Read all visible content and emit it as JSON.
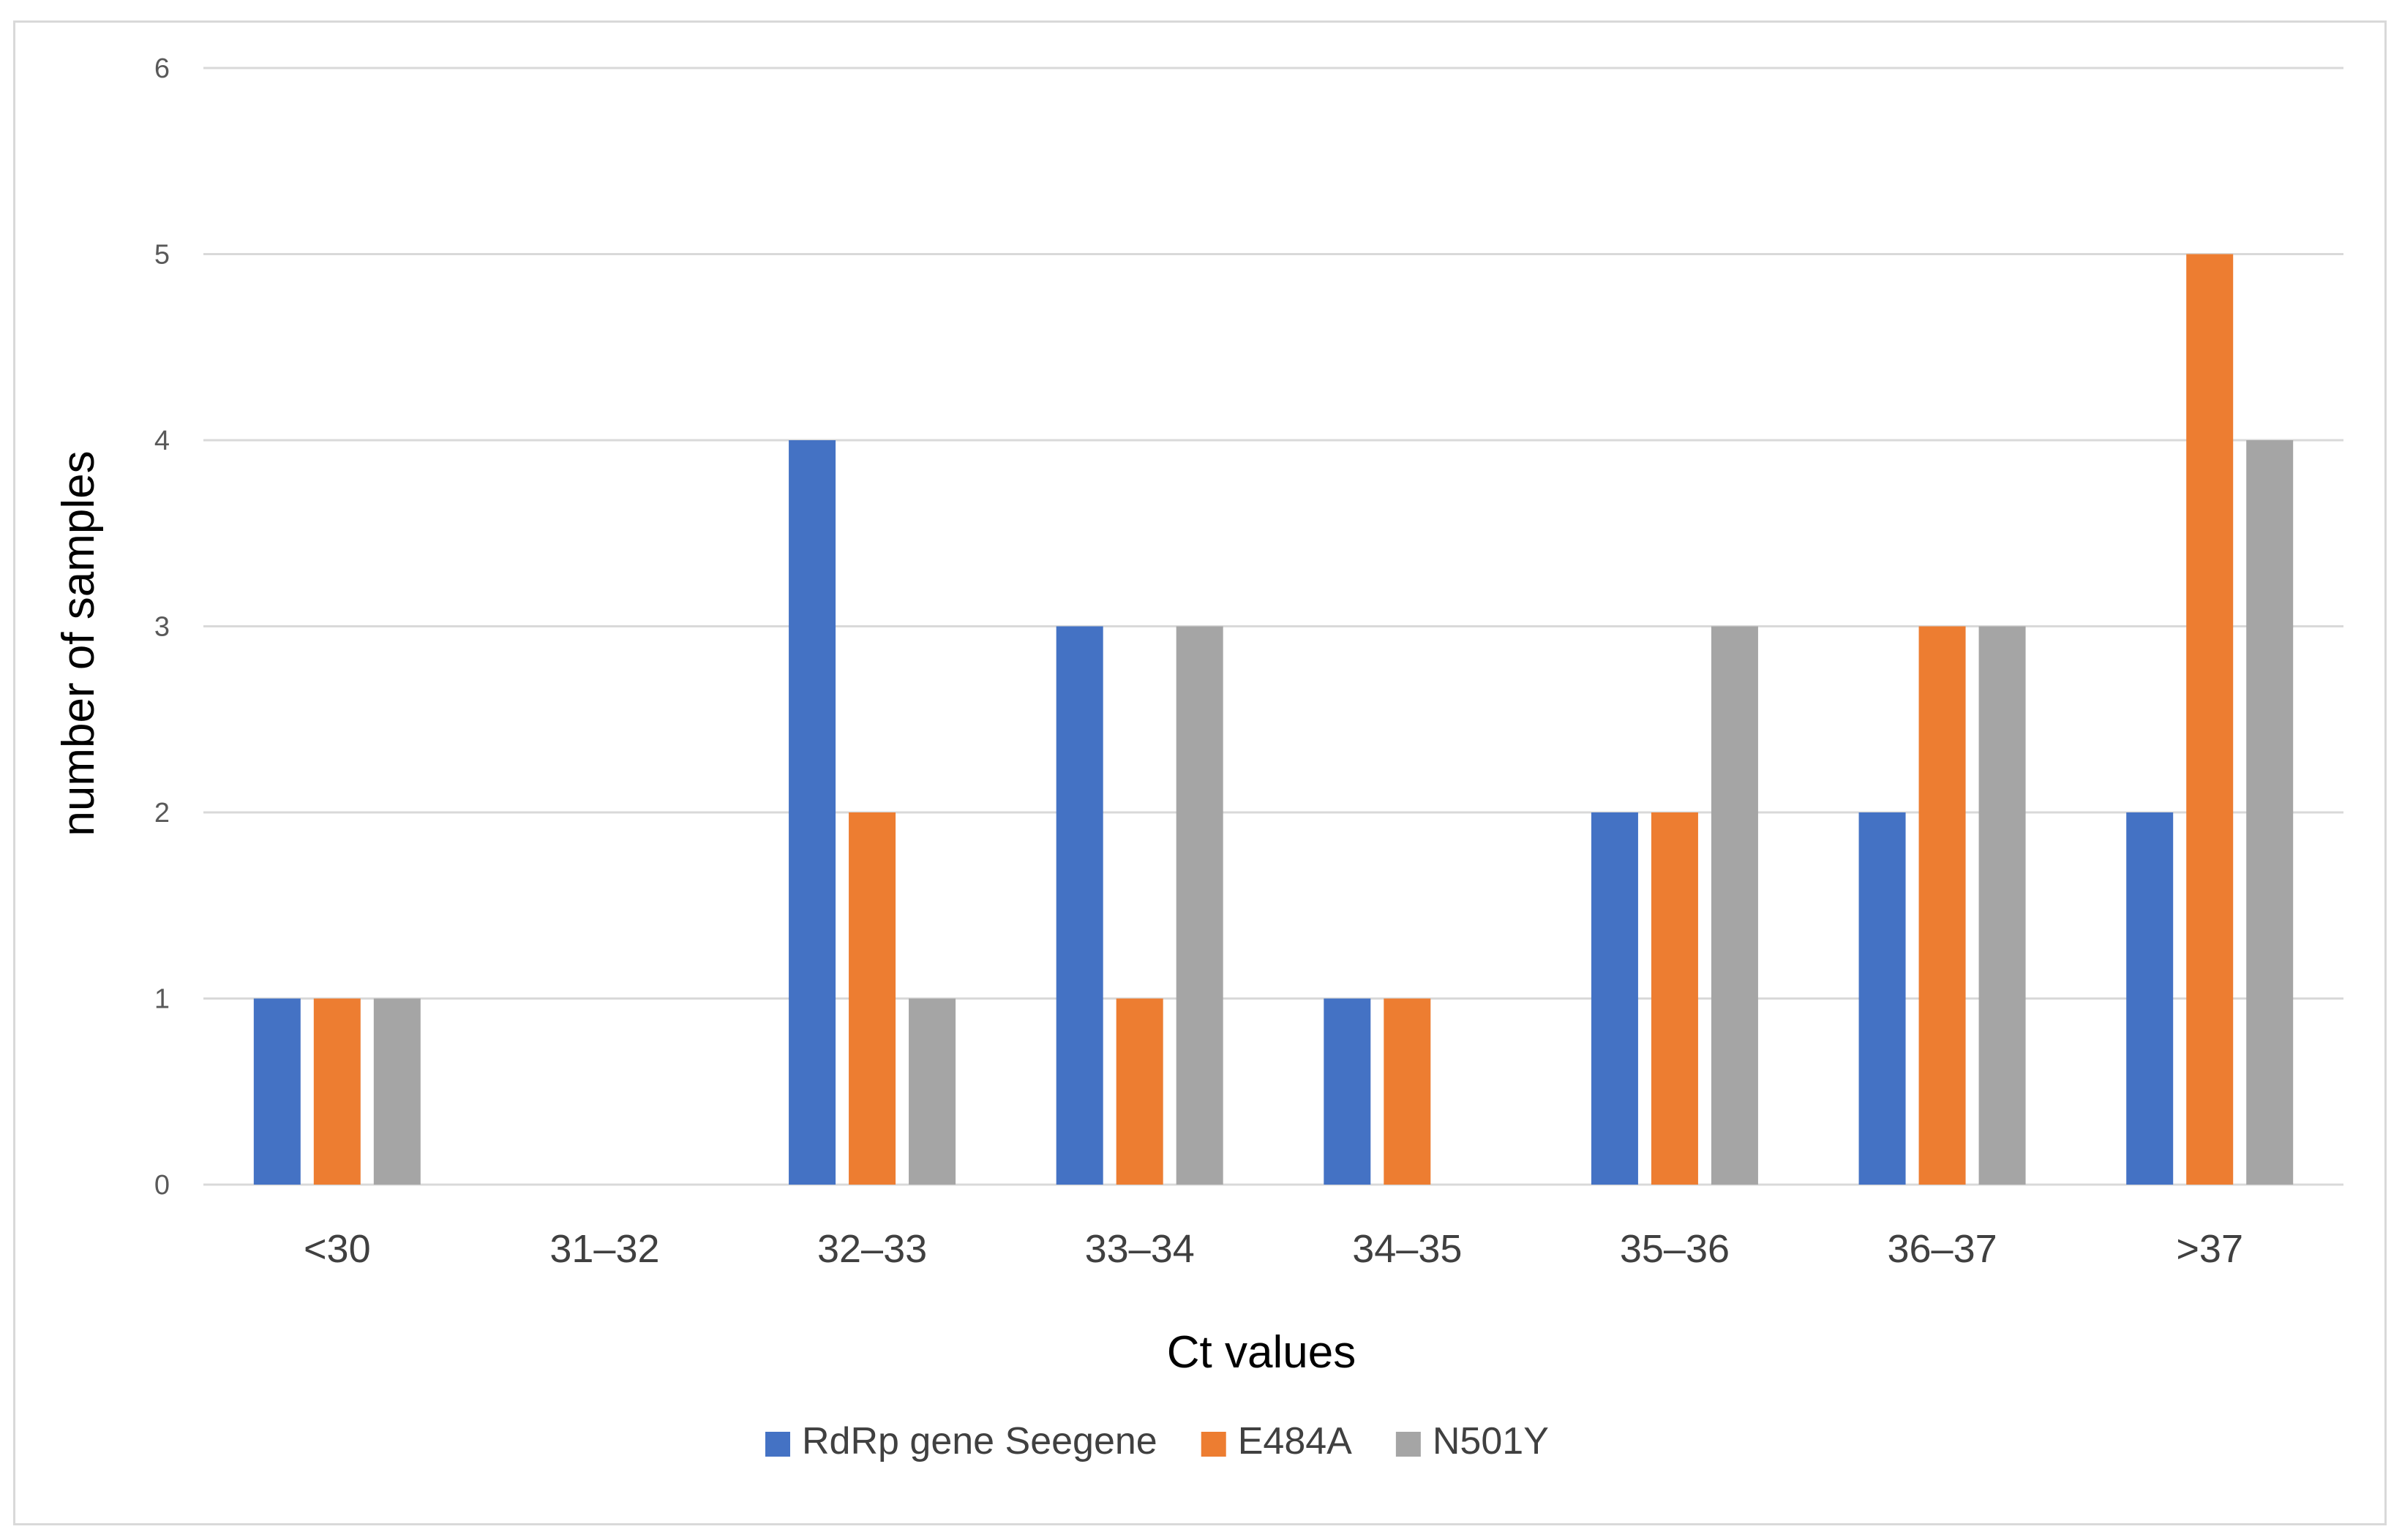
{
  "chart_data": {
    "type": "bar",
    "title": "",
    "xlabel": "Ct values",
    "ylabel": "number of samples",
    "ylim": [
      0,
      6
    ],
    "yticks": [
      0,
      1,
      2,
      3,
      4,
      5,
      6
    ],
    "grid": true,
    "legend_position": "bottom",
    "categories": [
      "<30",
      "31–32",
      "32–33",
      "33–34",
      "34–35",
      "35–36",
      "36–37",
      ">37"
    ],
    "series": [
      {
        "name": "RdRp gene Seegene",
        "color": "#4472c4",
        "values": [
          1,
          0,
          4,
          3,
          1,
          2,
          2,
          2
        ]
      },
      {
        "name": "E484A",
        "color": "#ed7d31",
        "values": [
          1,
          0,
          2,
          1,
          1,
          2,
          3,
          5
        ]
      },
      {
        "name": "N501Y",
        "color": "#a5a5a5",
        "values": [
          1,
          0,
          1,
          3,
          0,
          3,
          3,
          4
        ]
      }
    ]
  },
  "colors": {
    "grid": "#d9d9d9",
    "border": "#d9d9d9"
  }
}
